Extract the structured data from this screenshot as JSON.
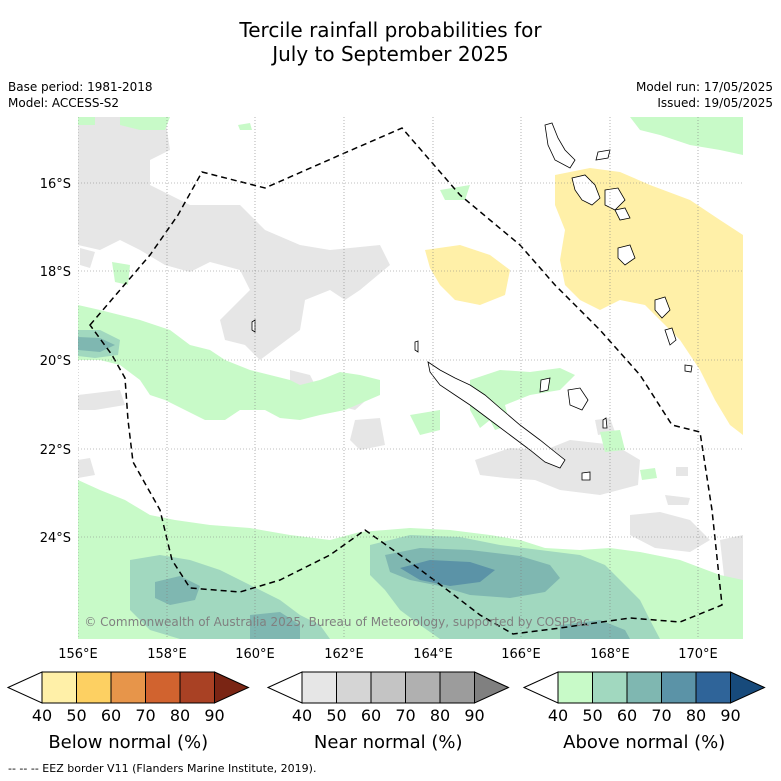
{
  "title_line1": "Tercile rainfall probabilities for",
  "title_line2": "July to September 2025",
  "base_period": "Base period: 1981-2018",
  "model": "Model: ACCESS-S2",
  "model_run": "Model run: 17/05/2025",
  "issued": "Issued: 19/05/2025",
  "copyright": "© Commonwealth of Australia 2025, Bureau of Meteorology, supported by COSPPac",
  "lat_labels": [
    "16°S",
    "18°S",
    "20°S",
    "22°S",
    "24°S"
  ],
  "lon_labels": [
    "156°E",
    "158°E",
    "160°E",
    "162°E",
    "164°E",
    "166°E",
    "168°E",
    "170°E"
  ],
  "legends": [
    {
      "title": "Below normal (%)",
      "ticks": [
        "40",
        "50",
        "60",
        "70",
        "80",
        "90"
      ],
      "colors": [
        "#ffffff",
        "#fff0a8",
        "#fdd062",
        "#e7954a",
        "#d1632f",
        "#a94124",
        "#7a2514"
      ]
    },
    {
      "title": "Near normal (%)",
      "ticks": [
        "40",
        "50",
        "60",
        "70",
        "80",
        "90"
      ],
      "colors": [
        "#ffffff",
        "#e6e6e6",
        "#d5d5d5",
        "#c4c4c4",
        "#b0b0b0",
        "#9c9c9c",
        "#808080"
      ]
    },
    {
      "title": "Above normal (%)",
      "ticks": [
        "40",
        "50",
        "60",
        "70",
        "80",
        "90"
      ],
      "colors": [
        "#ffffff",
        "#c8fac8",
        "#a1d8bf",
        "#7fb7b1",
        "#5b93a7",
        "#2f6499",
        "#174a7b"
      ]
    }
  ],
  "footnote": "--  --  -- EEZ border V11 (Flanders Marine Institute, 2019)."
}
